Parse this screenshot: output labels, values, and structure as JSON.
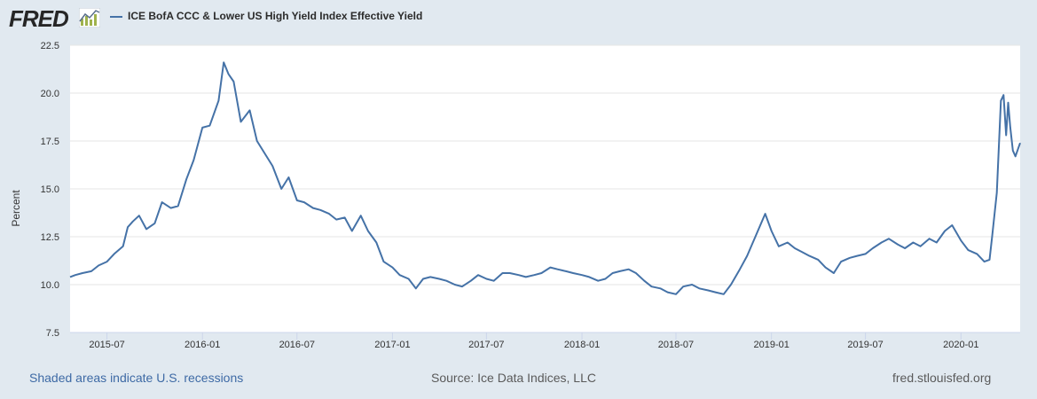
{
  "header": {
    "logo_text": "FRED",
    "series_title": "ICE BofA CCC & Lower US High Yield Index Effective Yield"
  },
  "footer": {
    "recession_note": "Shaded areas indicate U.S. recessions",
    "source": "Source: Ice Data Indices, LLC",
    "site": "fred.stlouisfed.org"
  },
  "colors": {
    "line": "#4572a7",
    "grid": "#e6e6e6",
    "background": "#e1e9f0",
    "plot": "#ffffff"
  },
  "chart_data": {
    "type": "line",
    "title": "",
    "ylabel": "Percent",
    "xlabel": "",
    "ylim": [
      7.5,
      22.5
    ],
    "xlim": [
      "2015-04-21",
      "2020-04-24"
    ],
    "yticks": [
      "7.5",
      "10.0",
      "12.5",
      "15.0",
      "17.5",
      "20.0",
      "22.5"
    ],
    "xticks": [
      "2015-07",
      "2016-01",
      "2016-07",
      "2017-01",
      "2017-07",
      "2018-01",
      "2018-07",
      "2019-01",
      "2019-07",
      "2020-01"
    ],
    "series": [
      {
        "name": "ICE BofA CCC & Lower US High Yield Index Effective Yield",
        "x": [
          "2015-04-21",
          "2015-05-01",
          "2015-05-15",
          "2015-06-01",
          "2015-06-15",
          "2015-07-01",
          "2015-07-15",
          "2015-08-01",
          "2015-08-10",
          "2015-08-20",
          "2015-09-01",
          "2015-09-15",
          "2015-10-01",
          "2015-10-15",
          "2015-11-01",
          "2015-11-15",
          "2015-12-01",
          "2015-12-15",
          "2016-01-01",
          "2016-01-15",
          "2016-02-01",
          "2016-02-11",
          "2016-02-20",
          "2016-03-01",
          "2016-03-15",
          "2016-04-01",
          "2016-04-15",
          "2016-05-01",
          "2016-05-15",
          "2016-06-01",
          "2016-06-15",
          "2016-07-01",
          "2016-07-15",
          "2016-08-01",
          "2016-08-15",
          "2016-09-01",
          "2016-09-15",
          "2016-10-01",
          "2016-10-15",
          "2016-11-01",
          "2016-11-15",
          "2016-12-01",
          "2016-12-15",
          "2017-01-01",
          "2017-01-15",
          "2017-02-01",
          "2017-02-15",
          "2017-03-01",
          "2017-03-15",
          "2017-04-01",
          "2017-04-15",
          "2017-05-01",
          "2017-05-15",
          "2017-06-01",
          "2017-06-15",
          "2017-07-01",
          "2017-07-15",
          "2017-08-01",
          "2017-08-15",
          "2017-09-01",
          "2017-09-15",
          "2017-10-01",
          "2017-10-15",
          "2017-11-01",
          "2017-11-15",
          "2017-12-01",
          "2017-12-15",
          "2018-01-01",
          "2018-01-15",
          "2018-02-01",
          "2018-02-15",
          "2018-03-01",
          "2018-03-15",
          "2018-04-01",
          "2018-04-15",
          "2018-05-01",
          "2018-05-15",
          "2018-06-01",
          "2018-06-15",
          "2018-07-01",
          "2018-07-15",
          "2018-08-01",
          "2018-08-15",
          "2018-09-01",
          "2018-09-15",
          "2018-10-01",
          "2018-10-15",
          "2018-11-01",
          "2018-11-15",
          "2018-12-01",
          "2018-12-20",
          "2019-01-01",
          "2019-01-15",
          "2019-02-01",
          "2019-02-15",
          "2019-03-01",
          "2019-03-15",
          "2019-04-01",
          "2019-04-15",
          "2019-05-01",
          "2019-05-15",
          "2019-06-01",
          "2019-06-15",
          "2019-07-01",
          "2019-07-15",
          "2019-08-01",
          "2019-08-15",
          "2019-09-01",
          "2019-09-15",
          "2019-10-01",
          "2019-10-15",
          "2019-11-01",
          "2019-11-15",
          "2019-12-01",
          "2019-12-15",
          "2020-01-01",
          "2020-01-15",
          "2020-02-01",
          "2020-02-15",
          "2020-02-25",
          "2020-03-01",
          "2020-03-10",
          "2020-03-18",
          "2020-03-23",
          "2020-03-28",
          "2020-04-01",
          "2020-04-05",
          "2020-04-10",
          "2020-04-15",
          "2020-04-24"
        ],
        "y": [
          10.4,
          10.5,
          10.6,
          10.7,
          11.0,
          11.2,
          11.6,
          12.0,
          13.0,
          13.3,
          13.6,
          12.9,
          13.2,
          14.3,
          14.0,
          14.1,
          15.5,
          16.5,
          18.2,
          18.3,
          19.6,
          21.6,
          21.0,
          20.6,
          18.5,
          19.1,
          17.5,
          16.8,
          16.2,
          15.0,
          15.6,
          14.4,
          14.3,
          14.0,
          13.9,
          13.7,
          13.4,
          13.5,
          12.8,
          13.6,
          12.8,
          12.2,
          11.2,
          10.9,
          10.5,
          10.3,
          9.8,
          10.3,
          10.4,
          10.3,
          10.2,
          10.0,
          9.9,
          10.2,
          10.5,
          10.3,
          10.2,
          10.6,
          10.6,
          10.5,
          10.4,
          10.5,
          10.6,
          10.9,
          10.8,
          10.7,
          10.6,
          10.5,
          10.4,
          10.2,
          10.3,
          10.6,
          10.7,
          10.8,
          10.6,
          10.2,
          9.9,
          9.8,
          9.6,
          9.5,
          9.9,
          10.0,
          9.8,
          9.7,
          9.6,
          9.5,
          10.0,
          10.8,
          11.5,
          12.5,
          13.7,
          12.8,
          12.0,
          12.2,
          11.9,
          11.7,
          11.5,
          11.3,
          10.9,
          10.6,
          11.2,
          11.4,
          11.5,
          11.6,
          11.9,
          12.2,
          12.4,
          12.1,
          11.9,
          12.2,
          12.0,
          12.4,
          12.2,
          12.8,
          13.1,
          12.3,
          11.8,
          11.6,
          11.2,
          11.3,
          12.5,
          14.8,
          19.6,
          19.9,
          17.8,
          19.5,
          18.2,
          17.0,
          16.7,
          17.4
        ]
      }
    ]
  }
}
